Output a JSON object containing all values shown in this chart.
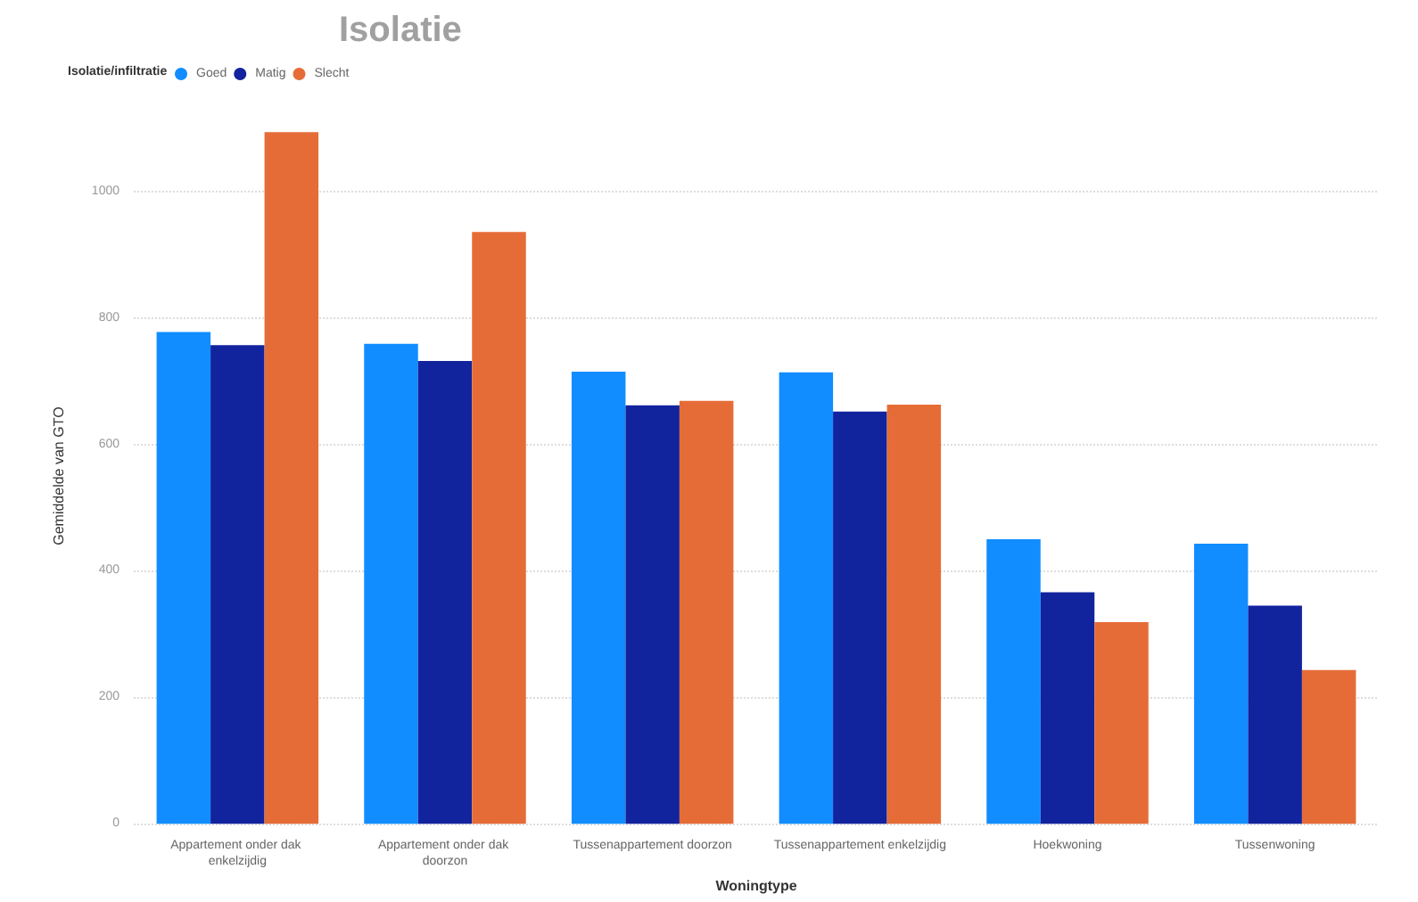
{
  "chart_data": {
    "type": "bar",
    "title": "Isolatie",
    "xlabel": "Woningtype",
    "ylabel": "Gemiddelde van GTO",
    "legend_title": "Isolatie/infiltratie",
    "categories": [
      "Appartement onder dak enkelzijdig",
      "Appartement onder dak doorzon",
      "Tussenappartement doorzon",
      "Tussenappartement enkelzijdig",
      "Hoekwoning",
      "Tussenwoning"
    ],
    "series": [
      {
        "name": "Goed",
        "color": "#118dff",
        "values": [
          778,
          759,
          715,
          714,
          450,
          443
        ]
      },
      {
        "name": "Matig",
        "color": "#12239e",
        "values": [
          757,
          732,
          662,
          652,
          366,
          345
        ]
      },
      {
        "name": "Slecht",
        "color": "#e66c37",
        "values": [
          1094,
          936,
          669,
          663,
          319,
          243
        ]
      }
    ],
    "ylim": [
      0,
      1100
    ],
    "yticks": [
      0,
      200,
      400,
      600,
      800,
      1000
    ],
    "grid": "y",
    "legend": "top left"
  }
}
